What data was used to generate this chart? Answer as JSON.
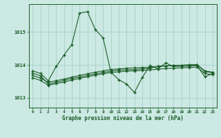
{
  "title": "Graphe pression niveau de la mer (hPa)",
  "bg_color": "#cce9e3",
  "line_color": "#1a5c28",
  "grid_color": "#a8cfc8",
  "xlim": [
    -0.5,
    23.5
  ],
  "ylim": [
    1012.7,
    1015.85
  ],
  "yticks": [
    1013,
    1014,
    1015
  ],
  "xtick_labels": [
    "0",
    "1",
    "2",
    "3",
    "4",
    "5",
    "6",
    "7",
    "8",
    "9",
    "10",
    "11",
    "12",
    "13",
    "14",
    "15",
    "16",
    "17",
    "18",
    "19",
    "20",
    "21",
    "22",
    "23"
  ],
  "series1_x": [
    0,
    1,
    2,
    3,
    4,
    5,
    6,
    7,
    8,
    9,
    10,
    11,
    12,
    13,
    14,
    15,
    16,
    17,
    18,
    19,
    20,
    21,
    22,
    23
  ],
  "series1_y": [
    1013.82,
    1013.74,
    1013.52,
    1013.95,
    1014.3,
    1014.62,
    1015.58,
    1015.62,
    1015.08,
    1014.82,
    1013.78,
    1013.55,
    1013.42,
    1013.16,
    1013.62,
    1013.98,
    1013.88,
    1014.06,
    1013.95,
    1013.96,
    1013.96,
    1013.98,
    1013.64,
    1013.74
  ],
  "series2_x": [
    0,
    1,
    2,
    3,
    4,
    5,
    6,
    7,
    8,
    9,
    10,
    11,
    12,
    13,
    14,
    15,
    16,
    17,
    18,
    19,
    20,
    21,
    22,
    23
  ],
  "series2_y": [
    1013.68,
    1013.6,
    1013.47,
    1013.52,
    1013.57,
    1013.63,
    1013.68,
    1013.73,
    1013.78,
    1013.82,
    1013.86,
    1013.88,
    1013.9,
    1013.91,
    1013.92,
    1013.93,
    1013.95,
    1013.97,
    1013.98,
    1013.99,
    1014.0,
    1014.01,
    1013.82,
    1013.78
  ],
  "series3_x": [
    0,
    1,
    2,
    3,
    4,
    5,
    6,
    7,
    8,
    9,
    10,
    11,
    12,
    13,
    14,
    15,
    16,
    17,
    18,
    19,
    20,
    21,
    22,
    23
  ],
  "series3_y": [
    1013.61,
    1013.53,
    1013.38,
    1013.43,
    1013.48,
    1013.54,
    1013.59,
    1013.64,
    1013.69,
    1013.73,
    1013.77,
    1013.79,
    1013.81,
    1013.82,
    1013.83,
    1013.85,
    1013.87,
    1013.89,
    1013.9,
    1013.91,
    1013.92,
    1013.93,
    1013.74,
    1013.7
  ],
  "series4_x": [
    0,
    1,
    2,
    3,
    4,
    5,
    6,
    7,
    8,
    9,
    10,
    11,
    12,
    13,
    14,
    15,
    16,
    17,
    18,
    19,
    20,
    21,
    22,
    23
  ],
  "series4_y": [
    1013.75,
    1013.67,
    1013.42,
    1013.47,
    1013.53,
    1013.59,
    1013.63,
    1013.68,
    1013.73,
    1013.77,
    1013.81,
    1013.84,
    1013.85,
    1013.86,
    1013.88,
    1013.9,
    1013.96,
    1013.97,
    1013.98,
    1013.99,
    1014.0,
    1014.0,
    1013.8,
    1013.76
  ],
  "marker": "+",
  "markersize": 3.5,
  "linewidth": 0.8
}
